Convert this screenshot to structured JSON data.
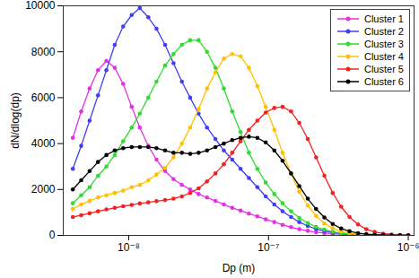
{
  "chart_data": {
    "type": "line",
    "x_label": "Dp (m)",
    "y_label": "dN/dlog(dp)",
    "log": "x",
    "marker": "circle",
    "legend": "top-right",
    "xlim": [
      3.4e-09,
      1.1e-06
    ],
    "xticks": [
      {
        "value": 1e-08,
        "label": "10⁻⁸"
      },
      {
        "value": 1e-07,
        "label": "10⁻⁷"
      },
      {
        "value": 1e-06,
        "label": "10⁻⁶"
      }
    ],
    "ylim": [
      0,
      10000
    ],
    "yticks": [
      0,
      2000,
      4000,
      6000,
      8000,
      10000
    ],
    "x": [
      3.98e-09,
      4.57e-09,
      5.25e-09,
      6.03e-09,
      6.92e-09,
      7.94e-09,
      9.12e-09,
      1.05e-08,
      1.2e-08,
      1.38e-08,
      1.58e-08,
      1.82e-08,
      2.09e-08,
      2.4e-08,
      2.75e-08,
      3.16e-08,
      3.63e-08,
      4.17e-08,
      4.79e-08,
      5.5e-08,
      6.31e-08,
      7.24e-08,
      8.32e-08,
      9.55e-08,
      1.1e-07,
      1.26e-07,
      1.45e-07,
      1.66e-07,
      1.91e-07,
      2.19e-07,
      2.51e-07,
      2.88e-07,
      3.31e-07,
      3.8e-07,
      4.37e-07,
      5.01e-07,
      5.75e-07,
      6.61e-07,
      7.59e-07,
      8.71e-07,
      1e-06
    ],
    "series": [
      {
        "name": "Cluster 1",
        "color": "#e62ee6",
        "values": [
          4250,
          5400,
          6400,
          7200,
          7600,
          7300,
          6600,
          5600,
          4700,
          3900,
          3300,
          2800,
          2450,
          2200,
          2000,
          1800,
          1650,
          1500,
          1350,
          1200,
          1080,
          950,
          830,
          700,
          580,
          460,
          360,
          270,
          200,
          140,
          100,
          70,
          50,
          30,
          20,
          12,
          8,
          5,
          3,
          2,
          1
        ]
      },
      {
        "name": "Cluster 2",
        "color": "#3f3ff5",
        "values": [
          2900,
          3900,
          5000,
          6100,
          7200,
          8300,
          9100,
          9600,
          9900,
          9500,
          9000,
          8300,
          7500,
          6700,
          6000,
          5300,
          4700,
          4200,
          3700,
          3300,
          2900,
          2500,
          2100,
          1700,
          1350,
          1050,
          800,
          580,
          410,
          280,
          190,
          120,
          80,
          50,
          30,
          18,
          10,
          6,
          3,
          2,
          1
        ]
      },
      {
        "name": "Cluster 3",
        "color": "#2fdc2f",
        "values": [
          1400,
          1750,
          2100,
          2600,
          3000,
          3500,
          4100,
          4700,
          5300,
          6000,
          6700,
          7400,
          7900,
          8300,
          8500,
          8500,
          8000,
          7300,
          6400,
          5400,
          4500,
          3600,
          2900,
          2300,
          1800,
          1400,
          1050,
          760,
          540,
          370,
          250,
          160,
          100,
          60,
          35,
          20,
          12,
          7,
          4,
          2,
          1
        ]
      },
      {
        "name": "Cluster 4",
        "color": "#ffc000",
        "values": [
          1150,
          1350,
          1500,
          1650,
          1750,
          1850,
          1950,
          2100,
          2200,
          2400,
          2650,
          2950,
          3400,
          4000,
          4700,
          5500,
          6400,
          7100,
          7700,
          7900,
          7800,
          7300,
          6500,
          5600,
          4600,
          3600,
          2700,
          1900,
          1300,
          850,
          520,
          310,
          180,
          100,
          55,
          30,
          16,
          9,
          5,
          3,
          1
        ]
      },
      {
        "name": "Cluster 5",
        "color": "#f52020",
        "values": [
          800,
          880,
          960,
          1050,
          1130,
          1200,
          1270,
          1330,
          1390,
          1440,
          1490,
          1540,
          1600,
          1700,
          1850,
          2050,
          2350,
          2700,
          3100,
          3600,
          4100,
          4600,
          5000,
          5350,
          5550,
          5600,
          5400,
          4900,
          4200,
          3400,
          2600,
          1850,
          1250,
          800,
          480,
          270,
          150,
          80,
          40,
          20,
          8
        ]
      },
      {
        "name": "Cluster 6",
        "color": "#000000",
        "values": [
          2000,
          2400,
          2800,
          3200,
          3500,
          3700,
          3800,
          3850,
          3850,
          3850,
          3800,
          3700,
          3600,
          3600,
          3550,
          3600,
          3700,
          3850,
          4000,
          4150,
          4250,
          4300,
          4250,
          4050,
          3700,
          3250,
          2700,
          2150,
          1600,
          1150,
          780,
          500,
          300,
          180,
          100,
          55,
          30,
          15,
          8,
          4,
          2
        ]
      }
    ]
  }
}
